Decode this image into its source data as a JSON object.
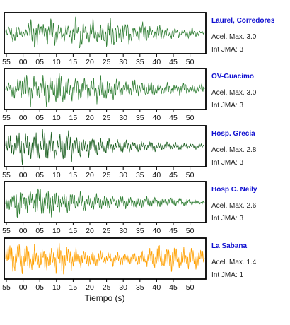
{
  "chart_data": {
    "type": "line",
    "xlabel": "Tiempo (s)",
    "tick_labels": [
      "55",
      "00",
      "05",
      "10",
      "15",
      "20",
      "25",
      "30",
      "35",
      "40",
      "45",
      "50"
    ],
    "panels": [
      {
        "name": "Laurel, Corredores",
        "accel_label": "Acel. Max. 3.0",
        "jma_label": "Int JMA: 3",
        "color": "#2e7d32",
        "waveform": [
          0.0,
          0.35,
          -0.5,
          0.3,
          -0.2,
          0.1,
          0.6,
          -0.7,
          0.2,
          0.45,
          -0.35,
          0.8,
          -0.6,
          0.3,
          -0.4,
          0.5,
          -0.5,
          0.75,
          -0.8,
          0.4,
          -0.3,
          0.65,
          -0.55,
          0.35,
          -0.6,
          0.85,
          -0.7,
          0.45,
          -0.4,
          0.6,
          -0.5,
          0.3,
          -0.35,
          0.5,
          -0.45,
          0.25,
          -0.3,
          0.4,
          -0.3,
          0.2,
          -0.25,
          0.3,
          -0.2,
          0.15,
          -0.2,
          0.25,
          -0.15,
          0.1,
          0.0
        ]
      },
      {
        "name": "OV-Guacimo",
        "accel_label": "Acel. Max. 3.0",
        "jma_label": "Int JMA: 3",
        "color": "#2e7d32",
        "waveform": [
          0.0,
          0.3,
          -0.45,
          0.5,
          -0.3,
          0.7,
          -0.75,
          0.6,
          -0.5,
          0.8,
          -0.85,
          0.55,
          -0.6,
          0.9,
          -0.7,
          0.5,
          -0.55,
          0.75,
          -0.65,
          0.45,
          -0.5,
          0.6,
          -0.55,
          0.7,
          -0.6,
          0.4,
          -0.45,
          0.55,
          -0.4,
          0.35,
          -0.4,
          0.45,
          -0.3,
          0.3,
          -0.35,
          0.4,
          -0.3,
          0.25,
          -0.3,
          0.35,
          -0.25,
          0.2,
          -0.25,
          0.3,
          -0.2,
          0.15,
          -0.2,
          0.25,
          0.0
        ]
      },
      {
        "name": "Hosp. Grecia",
        "accel_label": "Acel. Max. 2.8",
        "jma_label": "Int JMA: 3",
        "color": "#1b5e20",
        "waveform": [
          0.0,
          0.5,
          -0.6,
          0.7,
          -0.75,
          0.8,
          -0.7,
          0.6,
          -0.85,
          0.75,
          -0.5,
          0.65,
          -0.7,
          0.55,
          -0.6,
          0.9,
          -0.65,
          0.5,
          -0.55,
          0.45,
          -0.5,
          0.4,
          -0.45,
          0.35,
          -0.4,
          0.35,
          -0.3,
          0.3,
          -0.35,
          0.3,
          -0.25,
          0.25,
          -0.3,
          0.25,
          -0.2,
          0.2,
          -0.25,
          0.2,
          -0.2,
          0.2,
          -0.18,
          0.15,
          -0.18,
          0.15,
          -0.12,
          0.12,
          -0.15,
          0.1,
          0.0
        ]
      },
      {
        "name": "Hosp C. Neily",
        "accel_label": "Acel. Max. 2.6",
        "jma_label": "Int JMA: 3",
        "color": "#2e7d32",
        "waveform": [
          0.0,
          -0.4,
          0.3,
          -0.8,
          0.5,
          -0.3,
          0.7,
          -0.6,
          0.85,
          -0.5,
          0.4,
          -0.7,
          0.6,
          -0.45,
          0.35,
          -0.55,
          0.5,
          -0.4,
          0.45,
          -0.5,
          0.3,
          -0.35,
          0.4,
          -0.3,
          0.35,
          -0.4,
          0.25,
          -0.3,
          0.35,
          -0.25,
          0.3,
          -0.3,
          0.2,
          -0.25,
          0.3,
          -0.2,
          0.25,
          -0.25,
          0.2,
          -0.2,
          0.25,
          -0.15,
          0.2,
          -0.2,
          0.15,
          -0.15,
          0.1,
          -0.1,
          0.0
        ]
      },
      {
        "name": "La Sabana",
        "accel_label": "Acel. Max. 1.4",
        "jma_label": "Int JMA: 1",
        "color": "#ffa000",
        "waveform": [
          0.0,
          0.7,
          -0.65,
          0.85,
          -0.75,
          0.6,
          -0.8,
          0.7,
          -0.6,
          0.55,
          -0.65,
          0.5,
          -0.55,
          0.9,
          -0.85,
          0.6,
          -0.5,
          0.45,
          -0.5,
          0.4,
          -0.45,
          0.35,
          -0.4,
          0.35,
          -0.3,
          0.3,
          -0.35,
          0.3,
          -0.3,
          0.25,
          -0.25,
          0.3,
          -0.3,
          0.35,
          -0.4,
          0.5,
          -0.55,
          0.6,
          -0.5,
          0.55,
          -0.6,
          0.5,
          -0.55,
          0.45,
          -0.5,
          0.5,
          -0.45,
          0.4,
          0.0
        ]
      }
    ]
  }
}
